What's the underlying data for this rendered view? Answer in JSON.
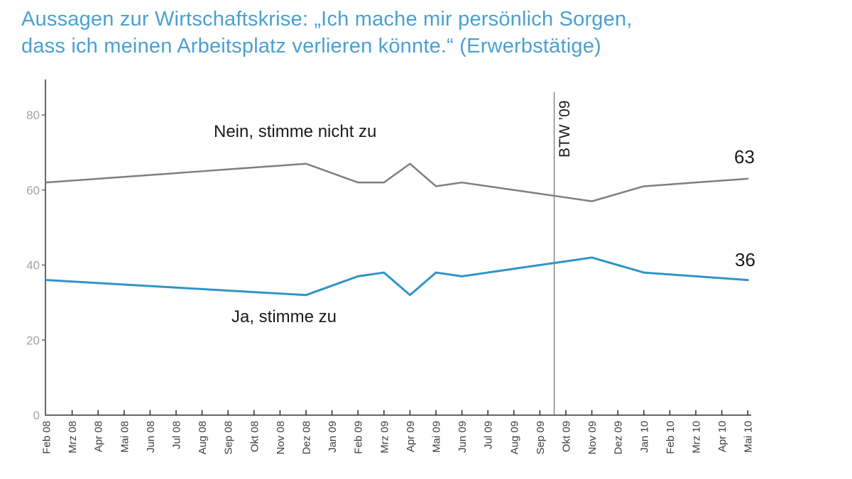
{
  "title": {
    "line1": "Aussagen zur Wirtschaftskrise: „Ich mache mir persönlich Sorgen,",
    "line2": "dass ich meinen Arbeitsplatz verlieren könnte.“ (Erwerbstätige)"
  },
  "chart_data": {
    "type": "line",
    "categories": [
      "Feb 08",
      "Mrz 08",
      "Apr 08",
      "Mai 08",
      "Jun 08",
      "Jul 08",
      "Aug 08",
      "Sep 08",
      "Okt 08",
      "Nov 08",
      "Dez 08",
      "Jan 09",
      "Feb 09",
      "Mrz 09",
      "Apr 09",
      "Mai 09",
      "Jun 09",
      "Jul 09",
      "Aug 09",
      "Sep 09",
      "Okt 09",
      "Nov 09",
      "Dez 09",
      "Jan 10",
      "Feb 10",
      "Mrz 10",
      "Apr 10",
      "Mai 10"
    ],
    "series": [
      {
        "name": "Nein, stimme nicht zu",
        "color": "#7f7f7f",
        "end_label": "63",
        "values": [
          62,
          62.5,
          63,
          63.5,
          64,
          64.5,
          65,
          65.5,
          66,
          66.5,
          67,
          64.5,
          62,
          62,
          67,
          61,
          62,
          61,
          60,
          59,
          58,
          57,
          59,
          61,
          61.5,
          62,
          62.5,
          63
        ]
      },
      {
        "name": "Ja, stimme zu",
        "color": "#3094c8",
        "end_label": "36",
        "values": [
          36,
          35.6,
          35.2,
          34.8,
          34.4,
          34,
          33.6,
          33.2,
          32.8,
          32.4,
          32,
          34.5,
          37,
          38,
          32,
          38,
          37,
          38,
          39,
          40,
          41,
          42,
          40,
          38,
          37.5,
          37,
          36.5,
          36
        ]
      }
    ],
    "yticks": [
      0,
      20,
      40,
      60,
      80
    ],
    "ylim": [
      0,
      89
    ],
    "grid": false,
    "legend_position": "inline-labels",
    "annotation": {
      "label": "BTW ’09",
      "position_between": [
        "Sep 09",
        "Okt 09"
      ]
    }
  },
  "colors": {
    "title": "#4aa0d2",
    "series_nein": "#7f7f7f",
    "series_ja": "#3094c8",
    "axis": "#666666",
    "month_tick": "#333333",
    "x_tick_labels": "#3d3d3d",
    "y_tick_labels": "#a3a3a3",
    "annotation_text": "#1a1a1a",
    "btw_line": "#595959",
    "background": "#ffffff"
  }
}
